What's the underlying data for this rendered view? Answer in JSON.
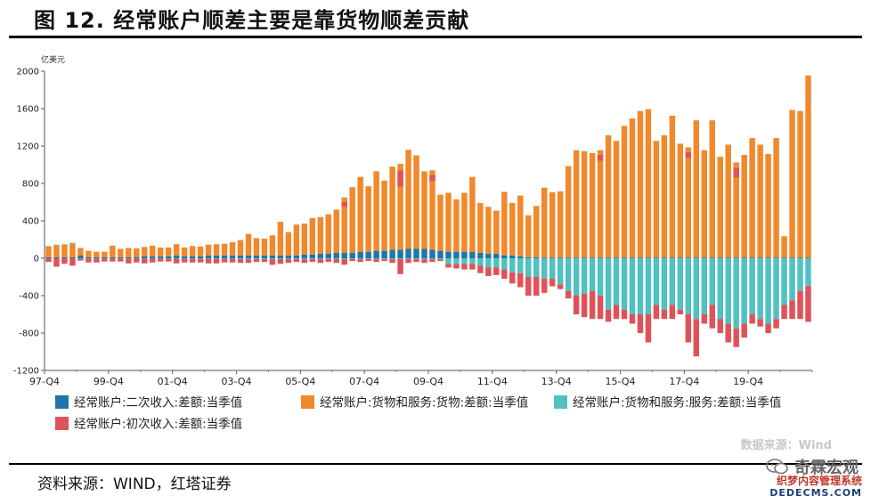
{
  "header": {
    "title": "图 12. 经常账户顺差主要是靠货物顺差贡献"
  },
  "footer": {
    "source": "资料来源：WIND，红塔证券",
    "data_source": "数据来源：Wind",
    "brand": "奇霖宏观",
    "site_cn": "织梦内容管理系统",
    "site_en": "DEDECMS.COM"
  },
  "colors": {
    "secondary": "#1f77a8",
    "goods": "#f0892c",
    "services": "#52c0c0",
    "primary": "#e0525a"
  },
  "chart_data": {
    "type": "bar",
    "stacked": true,
    "unit_label": "亿美元",
    "ylim": [
      -1200,
      2000
    ],
    "yticks": [
      -1200,
      -800,
      -400,
      0,
      400,
      800,
      1200,
      1600,
      2000
    ],
    "xtick_labels": [
      "97-Q4",
      "99-Q4",
      "01-Q4",
      "03-Q4",
      "05-Q4",
      "07-Q4",
      "09-Q4",
      "11-Q4",
      "13-Q4",
      "15-Q4",
      "17-Q4",
      "19-Q4"
    ],
    "start_quarter": "1997-Q4",
    "legend": [
      {
        "key": "secondary",
        "label": "经常账户:二次收入:差额:当季值"
      },
      {
        "key": "goods",
        "label": "经常账户:货物和服务:货物:差额:当季值"
      },
      {
        "key": "services",
        "label": "经常账户:货物和服务:服务:差额:当季值"
      },
      {
        "key": "primary",
        "label": "经常账户:初次收入:差额:当季值"
      }
    ],
    "series": [
      {
        "key": "goods",
        "name": "经常账户:货物和服务:货物:差额:当季值",
        "values": [
          115,
          130,
          135,
          150,
          80,
          70,
          60,
          60,
          125,
          90,
          100,
          95,
          100,
          115,
          95,
          95,
          120,
          95,
          110,
          105,
          115,
          120,
          125,
          140,
          165,
          230,
          185,
          180,
          215,
          360,
          250,
          330,
          330,
          390,
          390,
          420,
          460,
          590,
          700,
          800,
          700,
          850,
          750,
          890,
          920,
          1060,
          1000,
          830,
          850,
          600,
          630,
          560,
          630,
          800,
          530,
          500,
          460,
          680,
          560,
          650,
          450,
          550,
          750,
          700,
          710,
          980,
          1150,
          1140,
          1120,
          1150,
          1310,
          1250,
          1410,
          1490,
          1570,
          1590,
          1250,
          1310,
          1520,
          1220,
          1180,
          1470,
          1150,
          1470,
          1080,
          1210,
          1020,
          1100,
          1280,
          1210,
          1110,
          1280,
          230,
          1580,
          1570,
          1950
        ]
      },
      {
        "key": "secondary",
        "name": "经常账户:二次收入:差额:当季值",
        "values": [
          10,
          10,
          10,
          10,
          30,
          10,
          10,
          10,
          10,
          10,
          10,
          10,
          20,
          20,
          20,
          20,
          30,
          20,
          20,
          20,
          30,
          30,
          30,
          30,
          30,
          30,
          30,
          30,
          30,
          30,
          30,
          30,
          40,
          40,
          50,
          50,
          60,
          60,
          60,
          70,
          70,
          80,
          80,
          90,
          90,
          100,
          100,
          100,
          90,
          80,
          70,
          70,
          70,
          70,
          60,
          50,
          50,
          30,
          30,
          20,
          10,
          10,
          5,
          5,
          5,
          5,
          5,
          5,
          5,
          5,
          5,
          5,
          5,
          5,
          5,
          5,
          5,
          5,
          5,
          5,
          5,
          5,
          5,
          5,
          5,
          5,
          5,
          5,
          5,
          5,
          5,
          5,
          5,
          5,
          5,
          5
        ]
      },
      {
        "key": "services",
        "name": "经常账户:货物和服务:服务:差额:当季值",
        "values": [
          5,
          5,
          5,
          5,
          -5,
          -5,
          -5,
          -5,
          -5,
          -5,
          -5,
          -5,
          -5,
          -5,
          -5,
          -5,
          -5,
          -5,
          -5,
          -5,
          -5,
          -5,
          -5,
          -5,
          -10,
          -10,
          -10,
          -10,
          -10,
          -10,
          -10,
          -10,
          -10,
          -10,
          -10,
          -10,
          -10,
          -10,
          -10,
          -10,
          -10,
          -10,
          -10,
          -10,
          -10,
          -10,
          -10,
          -10,
          -10,
          -10,
          -60,
          -60,
          -60,
          -60,
          -80,
          -100,
          -100,
          -120,
          -150,
          -160,
          -200,
          -200,
          -220,
          -220,
          -280,
          -350,
          -400,
          -380,
          -350,
          -400,
          -550,
          -500,
          -550,
          -600,
          -600,
          -600,
          -500,
          -550,
          -500,
          -550,
          -600,
          -650,
          -600,
          -500,
          -650,
          -700,
          -750,
          -700,
          -600,
          -650,
          -700,
          -650,
          -500,
          -450,
          -350,
          -300
        ]
      },
      {
        "key": "primary",
        "name": "经常账户:初次收入:差额:当季值",
        "values": [
          -40,
          -90,
          -60,
          -80,
          -20,
          -40,
          -40,
          -30,
          -30,
          -30,
          -50,
          -40,
          -50,
          -40,
          -30,
          -30,
          -50,
          -40,
          -40,
          -40,
          -50,
          -50,
          -40,
          -40,
          -40,
          -40,
          -30,
          -30,
          -60,
          -50,
          -40,
          -30,
          -40,
          -30,
          -40,
          -30,
          -40,
          -60,
          -20,
          -30,
          -20,
          -30,
          -20,
          -40,
          -160,
          -40,
          -30,
          -40,
          -30,
          -20,
          -40,
          -50,
          -60,
          -60,
          -80,
          -90,
          -80,
          -100,
          -120,
          -150,
          -200,
          -200,
          -150,
          -80,
          -50,
          -80,
          -200,
          -250,
          -300,
          -250,
          -130,
          -150,
          -100,
          -100,
          -200,
          -300,
          -150,
          -100,
          -150,
          -50,
          -300,
          -400,
          -100,
          -250,
          -150,
          -200,
          -200,
          -150,
          -100,
          -80,
          -100,
          -100,
          -150,
          -200,
          -300,
          -380
        ]
      }
    ],
    "goods_detail_patches": {
      "indices": [
        37,
        44,
        48,
        69,
        80,
        86
      ],
      "note_values": [
        -50,
        -170,
        -60,
        -60,
        -60,
        -100
      ]
    }
  }
}
